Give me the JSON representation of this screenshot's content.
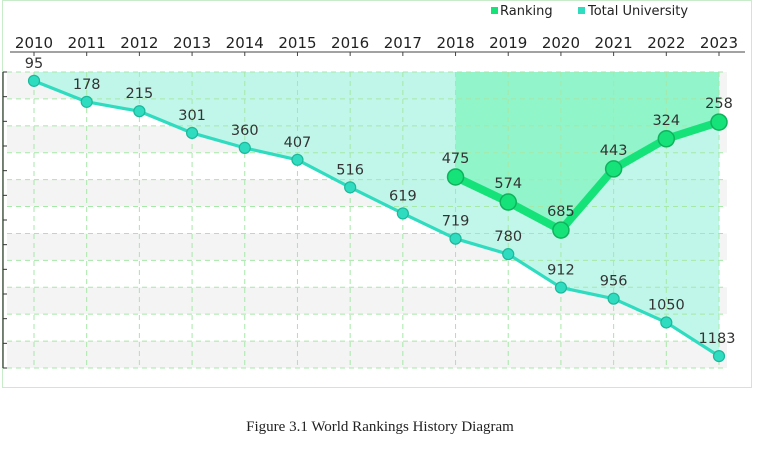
{
  "chart_data": {
    "type": "line",
    "x": [
      2010,
      2011,
      2012,
      2013,
      2014,
      2015,
      2016,
      2017,
      2018,
      2019,
      2020,
      2021,
      2022,
      2023
    ],
    "series": [
      {
        "name": "Ranking",
        "x": [
          2018,
          2019,
          2020,
          2021,
          2022,
          2023
        ],
        "values": [
          475,
          574,
          685,
          443,
          324,
          258
        ],
        "labels": [
          "475",
          "574",
          "685",
          "443",
          "324",
          "258"
        ]
      },
      {
        "name": "Total University",
        "x": [
          2010,
          2011,
          2012,
          2013,
          2014,
          2015,
          2016,
          2017,
          2018,
          2019,
          2020,
          2021,
          2022,
          2023
        ],
        "values": [
          95,
          178,
          215,
          301,
          360,
          407,
          516,
          619,
          719,
          780,
          912,
          956,
          1050,
          1183
        ],
        "labels": [
          "95",
          "178",
          "215",
          "301",
          "360",
          "407",
          "516",
          "619",
          "719",
          "780",
          "912",
          "956",
          "1050",
          "1183"
        ]
      }
    ],
    "x_tick_labels": [
      "2010",
      "2011",
      "2012",
      "2013",
      "2014",
      "2015",
      "2016",
      "2017",
      "2018",
      "2019",
      "2020",
      "2021",
      "2022",
      "2023"
    ],
    "legend": {
      "placement": "top-right"
    },
    "y_axis": "inverted",
    "ylim": [
      1230,
      60
    ],
    "grid": true,
    "colors": {
      "ranking": "#16e27a",
      "total": "#2fdcc0",
      "ranking_fill": "#8cf4c6",
      "total_fill": "#b6f6e6"
    }
  },
  "caption": "Figure 3.1 World Rankings History Diagram"
}
